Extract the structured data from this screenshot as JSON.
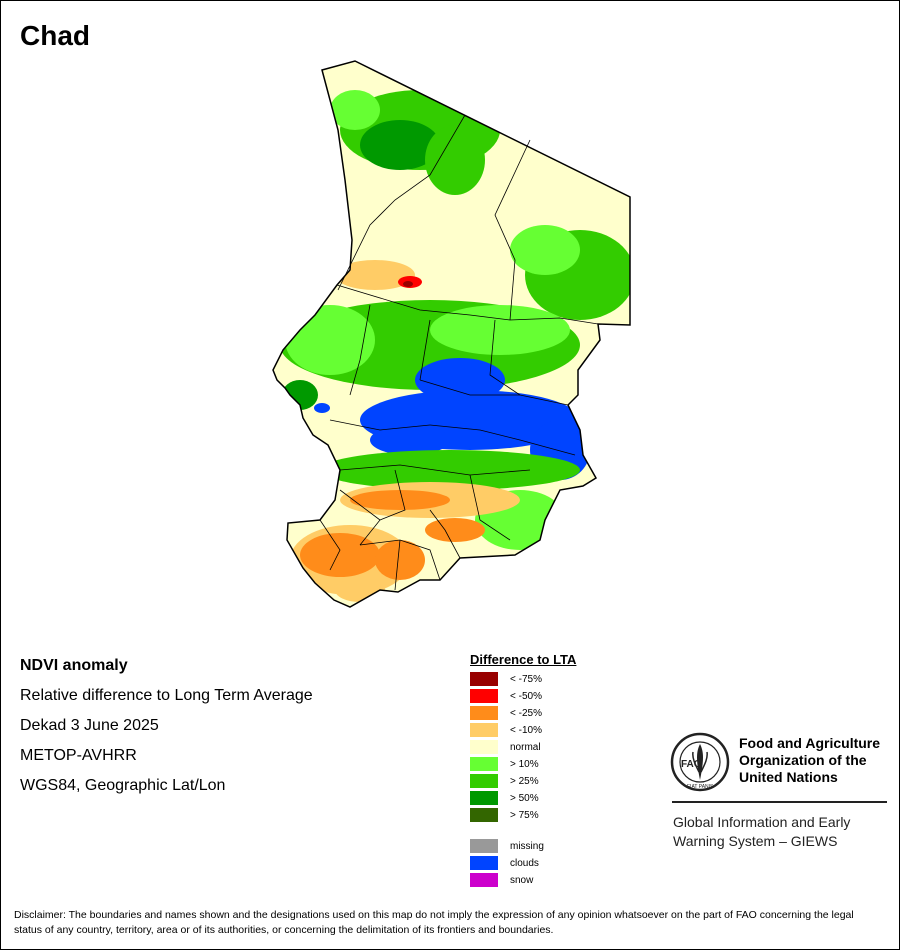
{
  "title": "Chad",
  "info": {
    "lines": [
      "NDVI anomaly",
      "Relative difference to Long Term Average",
      "Dekad 3 June 2025",
      "METOP-AVHRR",
      "WGS84, Geographic Lat/Lon"
    ]
  },
  "legend": {
    "title": "Difference to LTA",
    "items": [
      {
        "label": "< -75%",
        "color": "#990000"
      },
      {
        "label": "< -50%",
        "color": "#ff0000"
      },
      {
        "label": "< -25%",
        "color": "#ff8c1a"
      },
      {
        "label": "< -10%",
        "color": "#ffcc66"
      },
      {
        "label": "normal",
        "color": "#ffffcc"
      },
      {
        "label": "> 10%",
        "color": "#66ff33"
      },
      {
        "label": "> 25%",
        "color": "#33cc00"
      },
      {
        "label": "> 50%",
        "color": "#009900"
      },
      {
        "label": "> 75%",
        "color": "#336600"
      }
    ],
    "extra": [
      {
        "label": "missing",
        "color": "#999999"
      },
      {
        "label": "clouds",
        "color": "#0044ff"
      },
      {
        "label": "snow",
        "color": "#cc00cc"
      }
    ]
  },
  "org": {
    "logo_text": "FAO",
    "logo_motto": "FIAT PANIS",
    "name_lines": [
      "Food and Agriculture",
      "Organization of the",
      "United Nations"
    ],
    "giews_lines": [
      "Global Information and Early",
      "Warning System – GIEWS"
    ]
  },
  "disclaimer": "Disclaimer: The boundaries and names shown and the designations used on this map do not imply the expression of any opinion whatsoever on the part of FAO concerning the legal status of any country, territory, area or of its authorities, or concerning the delimitation of its frontiers and boundaries."
}
